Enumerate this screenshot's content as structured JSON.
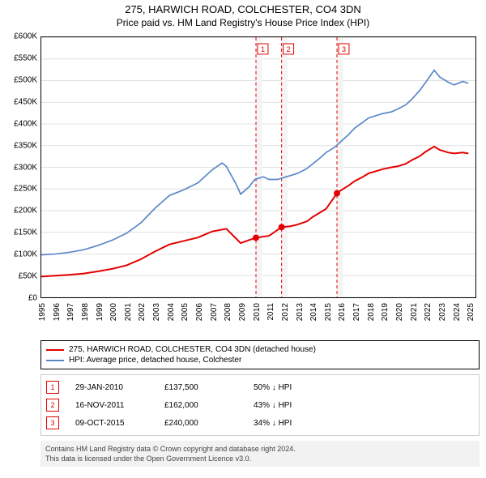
{
  "title_main": "275, HARWICH ROAD, COLCHESTER, CO4 3DN",
  "title_sub": "Price paid vs. HM Land Registry's House Price Index (HPI)",
  "chart": {
    "type": "line",
    "background_color": "#ffffff",
    "grid_color": "#e0e0e0",
    "border_color": "#000000",
    "yaxis": {
      "min": 0,
      "max": 600000,
      "step": 50000,
      "labels": [
        "£0",
        "£50K",
        "£100K",
        "£150K",
        "£200K",
        "£250K",
        "£300K",
        "£350K",
        "£400K",
        "£450K",
        "£500K",
        "£550K",
        "£600K"
      ],
      "label_fontsize": 10
    },
    "xaxis": {
      "min": 1995,
      "max": 2025.5,
      "labels": [
        "1995",
        "1996",
        "1997",
        "1998",
        "1999",
        "2000",
        "2001",
        "2002",
        "2003",
        "2004",
        "2005",
        "2006",
        "2007",
        "2008",
        "2009",
        "2010",
        "2011",
        "2012",
        "2013",
        "2014",
        "2015",
        "2016",
        "2017",
        "2018",
        "2019",
        "2020",
        "2021",
        "2022",
        "2023",
        "2024",
        "2025"
      ],
      "label_fontsize": 10,
      "label_rotation": -90
    },
    "markers": [
      {
        "label": "1",
        "x": 2010.08,
        "shade_to": 2010.5,
        "point_y": 137500,
        "band_color": "#f4f4f4",
        "line_color": "#e40000",
        "dash": "4 3"
      },
      {
        "label": "2",
        "x": 2011.88,
        "shade_to": 2012.3,
        "point_y": 162000,
        "band_color": "#f4f4f4",
        "line_color": "#e40000",
        "dash": "4 3"
      },
      {
        "label": "3",
        "x": 2015.77,
        "shade_to": 2016.2,
        "point_y": 240000,
        "band_color": "#f4f4f4",
        "line_color": "#e40000",
        "dash": "4 3"
      }
    ],
    "series": [
      {
        "name": "property",
        "color": "#e40000",
        "width": 2,
        "points": [
          [
            1995,
            48000
          ],
          [
            1996,
            50000
          ],
          [
            1997,
            52000
          ],
          [
            1998,
            55000
          ],
          [
            1999,
            60000
          ],
          [
            2000,
            66000
          ],
          [
            2001,
            74000
          ],
          [
            2002,
            88000
          ],
          [
            2003,
            106000
          ],
          [
            2004,
            122000
          ],
          [
            2005,
            130000
          ],
          [
            2006,
            138000
          ],
          [
            2007,
            152000
          ],
          [
            2008,
            158000
          ],
          [
            2008.7,
            135000
          ],
          [
            2009,
            125000
          ],
          [
            2009.6,
            132000
          ],
          [
            2010.08,
            137500
          ],
          [
            2010.6,
            140000
          ],
          [
            2011,
            142000
          ],
          [
            2011.88,
            162000
          ],
          [
            2012.5,
            164000
          ],
          [
            2013,
            168000
          ],
          [
            2013.7,
            176000
          ],
          [
            2014,
            184000
          ],
          [
            2014.6,
            196000
          ],
          [
            2015,
            204000
          ],
          [
            2015.77,
            240000
          ],
          [
            2016,
            246000
          ],
          [
            2016.6,
            258000
          ],
          [
            2017,
            268000
          ],
          [
            2017.6,
            278000
          ],
          [
            2018,
            286000
          ],
          [
            2018.6,
            292000
          ],
          [
            2019,
            296000
          ],
          [
            2019.6,
            300000
          ],
          [
            2020,
            302000
          ],
          [
            2020.6,
            308000
          ],
          [
            2021,
            316000
          ],
          [
            2021.6,
            326000
          ],
          [
            2022,
            336000
          ],
          [
            2022.6,
            348000
          ],
          [
            2023,
            340000
          ],
          [
            2023.6,
            334000
          ],
          [
            2024,
            332000
          ],
          [
            2024.6,
            334000
          ],
          [
            2025,
            332000
          ]
        ]
      },
      {
        "name": "hpi",
        "color": "#5b87c7",
        "width": 1.7,
        "points": [
          [
            1995,
            98000
          ],
          [
            1996,
            100000
          ],
          [
            1997,
            104000
          ],
          [
            1998,
            110000
          ],
          [
            1999,
            120000
          ],
          [
            2000,
            132000
          ],
          [
            2001,
            148000
          ],
          [
            2002,
            172000
          ],
          [
            2003,
            206000
          ],
          [
            2004,
            235000
          ],
          [
            2005,
            248000
          ],
          [
            2006,
            264000
          ],
          [
            2007,
            294000
          ],
          [
            2007.7,
            310000
          ],
          [
            2008,
            302000
          ],
          [
            2008.7,
            260000
          ],
          [
            2009,
            238000
          ],
          [
            2009.6,
            255000
          ],
          [
            2010,
            272000
          ],
          [
            2010.6,
            278000
          ],
          [
            2011,
            272000
          ],
          [
            2011.6,
            272000
          ],
          [
            2012,
            276000
          ],
          [
            2012.6,
            282000
          ],
          [
            2013,
            286000
          ],
          [
            2013.6,
            296000
          ],
          [
            2014,
            306000
          ],
          [
            2014.6,
            322000
          ],
          [
            2015,
            334000
          ],
          [
            2015.6,
            346000
          ],
          [
            2016,
            358000
          ],
          [
            2016.6,
            376000
          ],
          [
            2017,
            390000
          ],
          [
            2017.6,
            404000
          ],
          [
            2018,
            414000
          ],
          [
            2018.6,
            420000
          ],
          [
            2019,
            424000
          ],
          [
            2019.6,
            428000
          ],
          [
            2020,
            434000
          ],
          [
            2020.6,
            444000
          ],
          [
            2021,
            456000
          ],
          [
            2021.6,
            478000
          ],
          [
            2022,
            496000
          ],
          [
            2022.6,
            524000
          ],
          [
            2023,
            508000
          ],
          [
            2023.6,
            496000
          ],
          [
            2024,
            490000
          ],
          [
            2024.6,
            498000
          ],
          [
            2025,
            494000
          ]
        ]
      }
    ]
  },
  "legend": {
    "items": [
      {
        "color": "#e40000",
        "label": "275, HARWICH ROAD, COLCHESTER, CO4 3DN (detached house)"
      },
      {
        "color": "#5b87c7",
        "label": "HPI: Average price, detached house, Colchester"
      }
    ]
  },
  "events": [
    {
      "n": "1",
      "date": "29-JAN-2010",
      "price": "£137,500",
      "pct": "50% ↓ HPI"
    },
    {
      "n": "2",
      "date": "16-NOV-2011",
      "price": "£162,000",
      "pct": "43% ↓ HPI"
    },
    {
      "n": "3",
      "date": "09-OCT-2015",
      "price": "£240,000",
      "pct": "34% ↓ HPI"
    }
  ],
  "credits": {
    "line1": "Contains HM Land Registry data © Crown copyright and database right 2024.",
    "line2": "This data is licensed under the Open Government Licence v3.0."
  }
}
